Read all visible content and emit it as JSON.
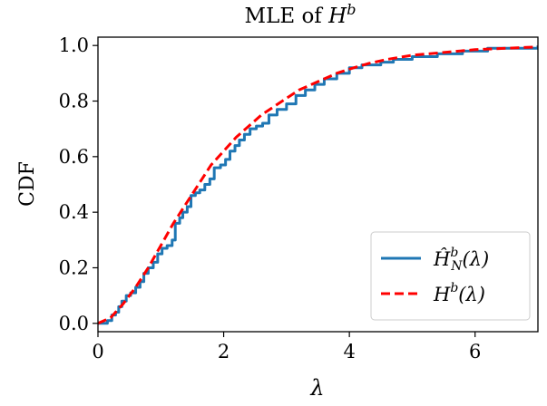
{
  "chart_data": {
    "type": "line",
    "title_text": "MLE of ",
    "title_math": "H",
    "title_sup": "b",
    "xlabel": "λ",
    "ylabel": "CDF",
    "xlim": [
      0,
      7
    ],
    "ylim": [
      -0.03,
      1.03
    ],
    "xticks": [
      0,
      2,
      4,
      6
    ],
    "xtick_labels": [
      "0",
      "2",
      "4",
      "6"
    ],
    "yticks": [
      0.0,
      0.2,
      0.4,
      0.6,
      0.8,
      1.0
    ],
    "ytick_labels": [
      "0.0",
      "0.2",
      "0.4",
      "0.6",
      "0.8",
      "1.0"
    ],
    "grid": false,
    "legend_position": "bottom-right",
    "series": [
      {
        "name": "Ĥ_N^b(λ)",
        "legend_base": "Ĥ",
        "legend_sub": "N",
        "legend_sup": "b",
        "legend_arg": "(λ)",
        "style": "step",
        "color": "#1f77b4",
        "x": [
          0.0,
          0.15,
          0.22,
          0.28,
          0.33,
          0.38,
          0.45,
          0.52,
          0.6,
          0.67,
          0.73,
          0.8,
          0.88,
          0.95,
          1.02,
          1.1,
          1.18,
          1.23,
          1.3,
          1.35,
          1.42,
          1.48,
          1.55,
          1.62,
          1.7,
          1.78,
          1.85,
          1.95,
          2.03,
          2.1,
          2.18,
          2.25,
          2.33,
          2.42,
          2.52,
          2.62,
          2.72,
          2.85,
          3.0,
          3.15,
          3.3,
          3.45,
          3.6,
          3.8,
          4.0,
          4.2,
          4.5,
          4.7,
          5.0,
          5.4,
          5.8,
          6.2,
          6.6,
          7.0
        ],
        "y": [
          0.0,
          0.01,
          0.03,
          0.04,
          0.06,
          0.08,
          0.1,
          0.11,
          0.13,
          0.15,
          0.18,
          0.2,
          0.22,
          0.25,
          0.27,
          0.28,
          0.3,
          0.36,
          0.38,
          0.4,
          0.42,
          0.46,
          0.47,
          0.48,
          0.5,
          0.52,
          0.56,
          0.57,
          0.59,
          0.62,
          0.64,
          0.66,
          0.68,
          0.7,
          0.71,
          0.72,
          0.75,
          0.77,
          0.79,
          0.82,
          0.84,
          0.86,
          0.88,
          0.9,
          0.92,
          0.93,
          0.94,
          0.95,
          0.96,
          0.97,
          0.98,
          0.99,
          0.99,
          1.0
        ]
      },
      {
        "name": "H^b(λ)",
        "legend_base": "H",
        "legend_sub": "",
        "legend_sup": "b",
        "legend_arg": "(λ)",
        "style": "dashed",
        "color": "#ff0000",
        "x": [
          0.0,
          0.2,
          0.4,
          0.6,
          0.8,
          1.0,
          1.2,
          1.4,
          1.6,
          1.8,
          2.0,
          2.2,
          2.4,
          2.6,
          2.8,
          3.0,
          3.2,
          3.4,
          3.6,
          3.8,
          4.0,
          4.3,
          4.6,
          5.0,
          5.5,
          6.0,
          6.5,
          7.0
        ],
        "y": [
          0.0,
          0.02,
          0.07,
          0.13,
          0.2,
          0.28,
          0.36,
          0.43,
          0.5,
          0.57,
          0.62,
          0.67,
          0.71,
          0.75,
          0.78,
          0.81,
          0.84,
          0.86,
          0.88,
          0.9,
          0.915,
          0.935,
          0.95,
          0.965,
          0.975,
          0.985,
          0.99,
          0.995
        ]
      }
    ]
  }
}
